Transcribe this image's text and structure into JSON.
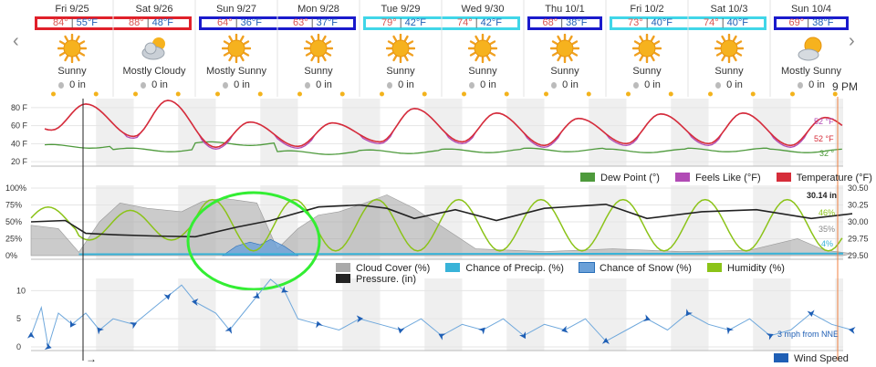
{
  "nav": {
    "prev": "‹",
    "next": "›"
  },
  "days": [
    {
      "label": "Fri 9/25",
      "condition": "Sunny",
      "precip": "0 in",
      "icon": "sun-icon"
    },
    {
      "label": "Sat 9/26",
      "condition": "Mostly Cloudy",
      "precip": "0 in",
      "icon": "mostly-cloudy-icon"
    },
    {
      "label": "Sun 9/27",
      "condition": "Mostly Sunny",
      "precip": "0 in",
      "icon": "sun-icon"
    },
    {
      "label": "Mon 9/28",
      "condition": "Sunny",
      "precip": "0 in",
      "icon": "sun-icon"
    },
    {
      "label": "Tue 9/29",
      "condition": "Sunny",
      "precip": "0 in",
      "icon": "sun-icon"
    },
    {
      "label": "Wed 9/30",
      "condition": "Sunny",
      "precip": "0 in",
      "icon": "sun-icon"
    },
    {
      "label": "Thu 10/1",
      "condition": "Sunny",
      "precip": "0 in",
      "icon": "sun-icon"
    },
    {
      "label": "Fri 10/2",
      "condition": "Sunny",
      "precip": "0 in",
      "icon": "sun-icon"
    },
    {
      "label": "Sat 10/3",
      "condition": "Sunny",
      "precip": "0 in",
      "icon": "sun-icon"
    },
    {
      "label": "Sun 10/4",
      "condition": "Mostly Sunny",
      "precip": "0 in",
      "icon": "mostly-sunny-icon"
    }
  ],
  "temps": [
    {
      "hi": "84°",
      "lo": "55°F",
      "box": "#e0202a"
    },
    {
      "hi": "88°",
      "lo": "48°F",
      "box": "#e0202a"
    },
    {
      "hi": "64°",
      "lo": "36°F",
      "box": "#1a1acc"
    },
    {
      "hi": "63°",
      "lo": "37°F",
      "box": "#1a1acc"
    },
    {
      "hi": "79°",
      "lo": "42°F",
      "box": "#40d6e8"
    },
    {
      "hi": "74°",
      "lo": "42°F",
      "box": "#40d6e8"
    },
    {
      "hi": "68°",
      "lo": "38°F",
      "box": "#1a1acc"
    },
    {
      "hi": "73°",
      "lo": "40°F",
      "box": "#40d6e8"
    },
    {
      "hi": "74°",
      "lo": "40°F",
      "box": "#40d6e8"
    },
    {
      "hi": "69°",
      "lo": "38°F",
      "box": "#1a1acc"
    }
  ],
  "now_label": "9 PM",
  "colors": {
    "temperature": "#d62d3a",
    "feels_like": "#b14bb5",
    "dew_point": "#4e9a3c",
    "cloud": "#a9a9a9",
    "precip": "#38b3d8",
    "snow": "#6aa0d8",
    "humidity": "#8bc318",
    "pressure": "#222222",
    "wind": "#1f5fb5",
    "annotation_circle": "#33ee33"
  },
  "chart_data": [
    {
      "type": "line",
      "title": "",
      "x": [
        "Fri 9/25",
        "Sat 9/26",
        "Sun 9/27",
        "Mon 9/28",
        "Tue 9/29",
        "Wed 9/30",
        "Thu 10/1",
        "Fri 10/2",
        "Sat 10/3",
        "Sun 10/4"
      ],
      "ylim": [
        20,
        80
      ],
      "yticks": [
        "80 F",
        "60 F",
        "40 F",
        "20 F"
      ],
      "series": [
        {
          "name": "Temperature (°F)",
          "highs": [
            84,
            88,
            64,
            63,
            79,
            74,
            68,
            73,
            74,
            69
          ],
          "lows": [
            55,
            48,
            36,
            37,
            42,
            42,
            38,
            40,
            40,
            38
          ]
        },
        {
          "name": "Feels Like (°F)"
        },
        {
          "name": "Dew Point (°)",
          "approx_values": [
            37,
            33,
            40,
            30,
            31,
            32,
            33,
            32,
            33,
            32
          ]
        }
      ],
      "end_labels": [
        "52 °F",
        "52 °F",
        "32 °"
      ]
    },
    {
      "type": "line",
      "title": "",
      "ylim_left": [
        0,
        100
      ],
      "yticks_left": [
        "100%",
        "75%",
        "50%",
        "25%",
        "0%"
      ],
      "ylim_right": [
        29.5,
        30.5
      ],
      "yticks_right": [
        "30.50",
        "30.25",
        "30.00",
        "29.75",
        "29.50"
      ],
      "series": [
        {
          "name": "Cloud Cover (%)",
          "type": "area"
        },
        {
          "name": "Chance of Precip. (%)",
          "type": "area"
        },
        {
          "name": "Chance of Snow (%)",
          "type": "area"
        },
        {
          "name": "Humidity (%)"
        },
        {
          "name": "Pressure. (in)"
        }
      ],
      "end_labels": [
        "30.14 in",
        "46%",
        "35%",
        "4%"
      ]
    },
    {
      "type": "line",
      "title": "",
      "ylim": [
        0,
        12
      ],
      "yticks": [
        "10",
        "5",
        "0"
      ],
      "series": [
        {
          "name": "Wind Speed"
        }
      ],
      "end_label": "3 mph from NNE"
    }
  ]
}
